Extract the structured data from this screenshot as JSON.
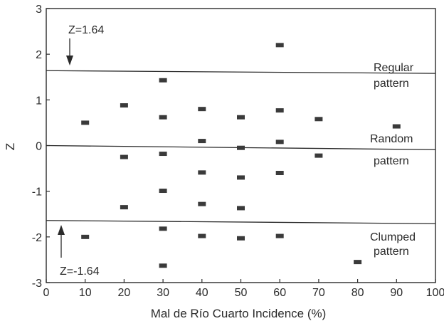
{
  "chart_data": {
    "type": "scatter",
    "title": "",
    "xlabel": "Mal de Río Cuarto Incidence (%)",
    "ylabel": "Z",
    "xlim": [
      0,
      100
    ],
    "ylim": [
      -3,
      3
    ],
    "xticks": [
      0,
      10,
      20,
      30,
      40,
      50,
      60,
      70,
      80,
      90,
      100
    ],
    "yticks": [
      3,
      2,
      1,
      0,
      -1,
      -2,
      -3
    ],
    "grid": false,
    "marker": "square",
    "color": "#3a3a3a",
    "points": [
      {
        "x": 10,
        "y": 0.5
      },
      {
        "x": 10,
        "y": -2.0
      },
      {
        "x": 20,
        "y": 0.88
      },
      {
        "x": 20,
        "y": -0.25
      },
      {
        "x": 20,
        "y": -1.35
      },
      {
        "x": 30,
        "y": 1.43
      },
      {
        "x": 30,
        "y": 0.62
      },
      {
        "x": 30,
        "y": -0.18
      },
      {
        "x": 30,
        "y": -0.99
      },
      {
        "x": 30,
        "y": -1.82
      },
      {
        "x": 30,
        "y": -2.63
      },
      {
        "x": 40,
        "y": 0.8
      },
      {
        "x": 40,
        "y": 0.1
      },
      {
        "x": 40,
        "y": -0.59
      },
      {
        "x": 40,
        "y": -1.28
      },
      {
        "x": 40,
        "y": -1.98
      },
      {
        "x": 50,
        "y": 0.62
      },
      {
        "x": 50,
        "y": -0.05
      },
      {
        "x": 50,
        "y": -0.7
      },
      {
        "x": 50,
        "y": -1.37
      },
      {
        "x": 50,
        "y": -2.03
      },
      {
        "x": 60,
        "y": 2.2
      },
      {
        "x": 60,
        "y": 0.77
      },
      {
        "x": 60,
        "y": 0.08
      },
      {
        "x": 60,
        "y": -0.6
      },
      {
        "x": 60,
        "y": -1.98
      },
      {
        "x": 70,
        "y": 0.58
      },
      {
        "x": 70,
        "y": -0.22
      },
      {
        "x": 80,
        "y": -2.55
      },
      {
        "x": 90,
        "y": 0.42
      }
    ],
    "reference_lines": [
      {
        "y_start": 1.64,
        "y_end": 1.58
      },
      {
        "y_start": 0.0,
        "y_end": -0.09
      },
      {
        "y_start": -1.64,
        "y_end": -1.71
      }
    ],
    "annotations": {
      "z_upper": "Z=1.64",
      "z_lower": "Z=-1.64",
      "regular_1": "Regular",
      "regular_2": "pattern",
      "random_1": "Random",
      "random_2": "pattern",
      "clumped_1": "Clumped",
      "clumped_2": "pattern"
    }
  }
}
